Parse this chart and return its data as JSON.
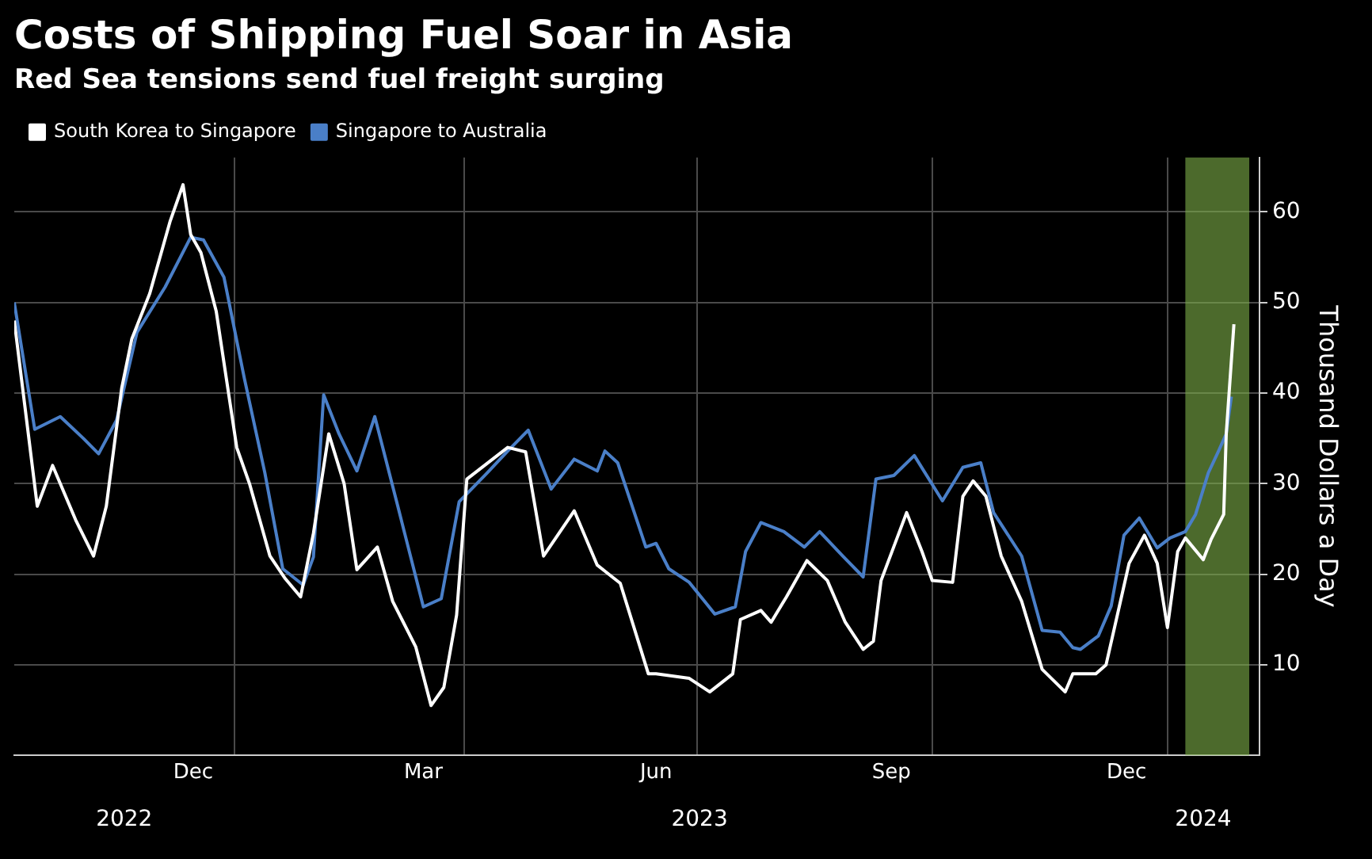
{
  "chart_data": {
    "type": "line",
    "title": "Costs of Shipping Fuel Soar in Asia",
    "subtitle": "Red Sea tensions send fuel freight surging",
    "ylabel": "Thousand Dollars a Day",
    "series": [
      {
        "name": "South Korea to Singapore",
        "color": "#ffffff",
        "x": [
          "2022-10-07",
          "2022-10-16",
          "2022-10-22",
          "2022-10-31",
          "2022-11-07",
          "2022-11-12",
          "2022-11-18",
          "2022-11-22",
          "2022-11-29",
          "2022-12-07",
          "2022-12-12",
          "2022-12-15",
          "2022-12-19",
          "2022-12-25",
          "2023-01-02",
          "2023-01-07",
          "2023-01-15",
          "2023-01-21",
          "2023-01-27",
          "2023-02-01",
          "2023-02-07",
          "2023-02-13",
          "2023-02-18",
          "2023-02-26",
          "2023-03-04",
          "2023-03-13",
          "2023-03-19",
          "2023-03-24",
          "2023-03-29",
          "2023-04-02",
          "2023-04-18",
          "2023-04-25",
          "2023-05-02",
          "2023-05-14",
          "2023-05-23",
          "2023-06-01",
          "2023-06-12",
          "2023-06-15",
          "2023-06-28",
          "2023-07-06",
          "2023-07-15",
          "2023-07-18",
          "2023-07-26",
          "2023-07-30",
          "2023-08-05",
          "2023-08-13",
          "2023-08-21",
          "2023-08-28",
          "2023-09-04",
          "2023-09-08",
          "2023-09-11",
          "2023-09-21",
          "2023-09-27",
          "2023-10-01",
          "2023-10-09",
          "2023-10-13",
          "2023-10-17",
          "2023-10-22",
          "2023-10-28",
          "2023-11-05",
          "2023-11-13",
          "2023-11-22",
          "2023-11-25",
          "2023-12-04",
          "2023-12-08",
          "2023-12-17",
          "2023-12-23",
          "2023-12-28",
          "2024-01-01",
          "2024-01-05",
          "2024-01-08",
          "2024-01-15",
          "2024-01-18",
          "2024-01-23",
          "2024-01-24",
          "2024-01-27"
        ],
        "values": [
          48,
          27.5,
          32,
          26,
          22,
          27.5,
          40.5,
          46,
          51,
          59,
          63,
          57.5,
          55.5,
          49,
          34,
          30,
          22,
          19.5,
          17.5,
          24.5,
          35.5,
          30,
          20.5,
          23,
          17,
          12,
          5.5,
          7.5,
          15.5,
          30.5,
          34,
          33.5,
          22,
          27,
          21,
          19,
          9,
          9,
          8.5,
          7,
          9,
          15,
          16,
          14.7,
          17.5,
          21.5,
          19.3,
          14.7,
          11.7,
          12.6,
          19.3,
          26.8,
          22.5,
          19.3,
          19.1,
          28.6,
          30.3,
          28.6,
          22,
          17,
          9.5,
          7,
          9,
          9,
          10,
          21.2,
          24.3,
          21.2,
          14.1,
          22.5,
          24,
          21.6,
          23.8,
          26.6,
          35.5,
          47.6
        ]
      },
      {
        "name": "Singapore to Australia",
        "color": "#4a7fc8",
        "x": [
          "2022-10-07",
          "2022-10-15",
          "2022-10-25",
          "2022-11-03",
          "2022-11-09",
          "2022-11-16",
          "2022-11-24",
          "2022-12-05",
          "2022-12-15",
          "2022-12-20",
          "2022-12-28",
          "2023-01-05",
          "2023-01-13",
          "2023-01-20",
          "2023-01-28",
          "2023-02-01",
          "2023-02-05",
          "2023-02-11",
          "2023-02-18",
          "2023-02-25",
          "2023-03-06",
          "2023-03-16",
          "2023-03-23",
          "2023-03-30",
          "2023-04-10",
          "2023-04-18",
          "2023-04-26",
          "2023-05-05",
          "2023-05-14",
          "2023-05-23",
          "2023-05-26",
          "2023-05-31",
          "2023-06-11",
          "2023-06-15",
          "2023-06-20",
          "2023-06-28",
          "2023-07-08",
          "2023-07-16",
          "2023-07-20",
          "2023-07-26",
          "2023-08-04",
          "2023-08-12",
          "2023-08-18",
          "2023-08-27",
          "2023-09-04",
          "2023-09-09",
          "2023-09-16",
          "2023-09-24",
          "2023-10-05",
          "2023-10-13",
          "2023-10-20",
          "2023-10-25",
          "2023-11-05",
          "2023-11-13",
          "2023-11-20",
          "2023-11-25",
          "2023-11-28",
          "2023-12-05",
          "2023-12-10",
          "2023-12-15",
          "2023-12-21",
          "2023-12-28",
          "2024-01-02",
          "2024-01-08",
          "2024-01-12",
          "2024-01-17",
          "2024-01-21",
          "2024-01-24",
          "2024-01-26"
        ],
        "values": [
          50,
          36,
          37.4,
          35,
          33.3,
          37,
          46.7,
          51.7,
          57.2,
          56.9,
          52.8,
          41.6,
          31.2,
          20.6,
          18.8,
          21.9,
          39.8,
          35.5,
          31.4,
          37.4,
          27.5,
          16.4,
          17.3,
          28,
          31.2,
          33.6,
          35.9,
          29.4,
          32.7,
          31.4,
          33.6,
          32.3,
          23,
          23.4,
          20.6,
          19.1,
          15.6,
          16.4,
          22.5,
          25.7,
          24.7,
          23,
          24.7,
          22,
          19.7,
          30.5,
          30.9,
          33.1,
          28.1,
          31.8,
          32.3,
          26.8,
          22,
          13.8,
          13.6,
          11.9,
          11.7,
          13.2,
          16.5,
          24.3,
          26.2,
          22.9,
          24,
          24.7,
          26.6,
          31.2,
          33.6,
          35.5,
          39.6
        ]
      }
    ],
    "xlim": [
      "2022-10-07",
      "2024-02-06"
    ],
    "xticks": [
      {
        "value": "2022-12-16",
        "label": "Dec"
      },
      {
        "value": "2023-01-01",
        "label": null
      },
      {
        "value": "2023-03-16",
        "label": "Mar"
      },
      {
        "value": "2023-04-01",
        "label": null
      },
      {
        "value": "2023-06-15",
        "label": "Jun"
      },
      {
        "value": "2023-07-01",
        "label": null
      },
      {
        "value": "2023-09-15",
        "label": "Sep"
      },
      {
        "value": "2023-10-01",
        "label": null
      },
      {
        "value": "2023-12-16",
        "label": "Dec"
      },
      {
        "value": "2024-01-01",
        "label": null
      }
    ],
    "x2lim": [
      "2022-10-07",
      "2024-02-06"
    ],
    "x2ticks": [
      {
        "value": "2022-11-19",
        "label": "2022"
      },
      {
        "value": "2023-07-02",
        "label": "2023"
      },
      {
        "value": "2024-01-15",
        "label": "2024"
      }
    ],
    "ylim": [
      0,
      66
    ],
    "yticks": [
      10,
      20,
      30,
      40,
      50,
      60
    ],
    "bands": [
      {
        "axis": "x",
        "from": "2024-01-08",
        "to": "2024-02-02",
        "color": "#7fb04a"
      }
    ],
    "grid": true,
    "legend": "top left",
    "marker": "none",
    "line_style": "solid"
  }
}
